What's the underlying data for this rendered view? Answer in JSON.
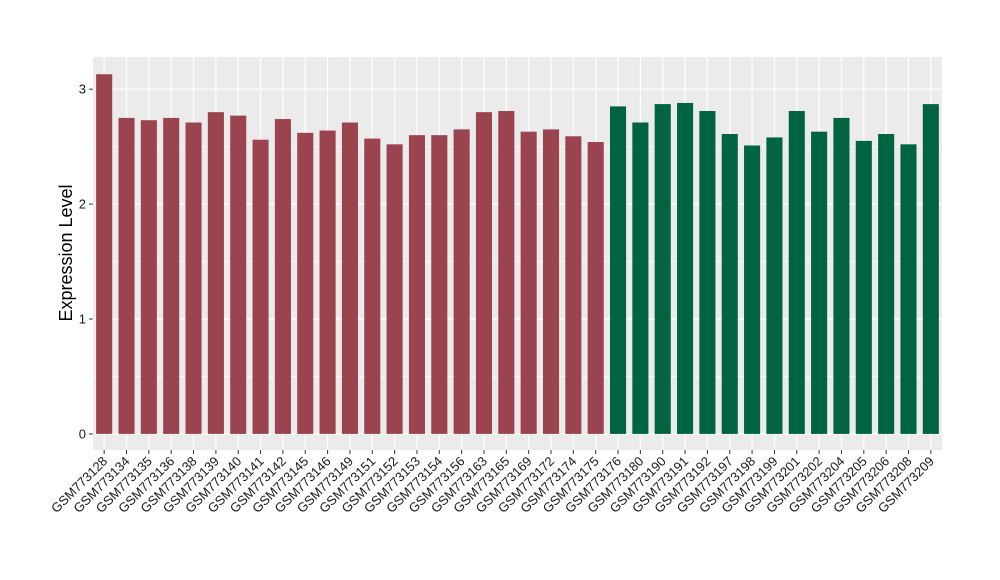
{
  "chart_data": {
    "type": "bar",
    "title": "",
    "xlabel": "",
    "ylabel": "Expression Level",
    "ylim": [
      -0.14,
      3.28
    ],
    "yticks": [
      0,
      1,
      2,
      3
    ],
    "grid": true,
    "legend": "none",
    "colors": {
      "group_a": "#9b4450",
      "group_b": "#006440",
      "panel_bg": "#ebebeb",
      "grid": "#ffffff"
    },
    "categories": [
      "GSM773128",
      "GSM773134",
      "GSM773135",
      "GSM773136",
      "GSM773138",
      "GSM773139",
      "GSM773140",
      "GSM773141",
      "GSM773142",
      "GSM773145",
      "GSM773146",
      "GSM773149",
      "GSM773151",
      "GSM773152",
      "GSM773153",
      "GSM773154",
      "GSM773156",
      "GSM773163",
      "GSM773165",
      "GSM773169",
      "GSM773172",
      "GSM773174",
      "GSM773175",
      "GSM773176",
      "GSM773180",
      "GSM773190",
      "GSM773191",
      "GSM773192",
      "GSM773197",
      "GSM773198",
      "GSM773199",
      "GSM773201",
      "GSM773202",
      "GSM773204",
      "GSM773205",
      "GSM773206",
      "GSM773208",
      "GSM773209"
    ],
    "values": [
      3.13,
      2.75,
      2.73,
      2.75,
      2.71,
      2.8,
      2.77,
      2.56,
      2.74,
      2.62,
      2.64,
      2.71,
      2.57,
      2.52,
      2.6,
      2.6,
      2.65,
      2.8,
      2.81,
      2.63,
      2.65,
      2.59,
      2.54,
      2.85,
      2.71,
      2.87,
      2.88,
      2.81,
      2.61,
      2.51,
      2.58,
      2.81,
      2.63,
      2.75,
      2.55,
      2.61,
      2.52,
      2.87
    ],
    "groups": [
      "a",
      "a",
      "a",
      "a",
      "a",
      "a",
      "a",
      "a",
      "a",
      "a",
      "a",
      "a",
      "a",
      "a",
      "a",
      "a",
      "a",
      "a",
      "a",
      "a",
      "a",
      "a",
      "a",
      "b",
      "b",
      "b",
      "b",
      "b",
      "b",
      "b",
      "b",
      "b",
      "b",
      "b",
      "b",
      "b",
      "b",
      "b"
    ]
  }
}
